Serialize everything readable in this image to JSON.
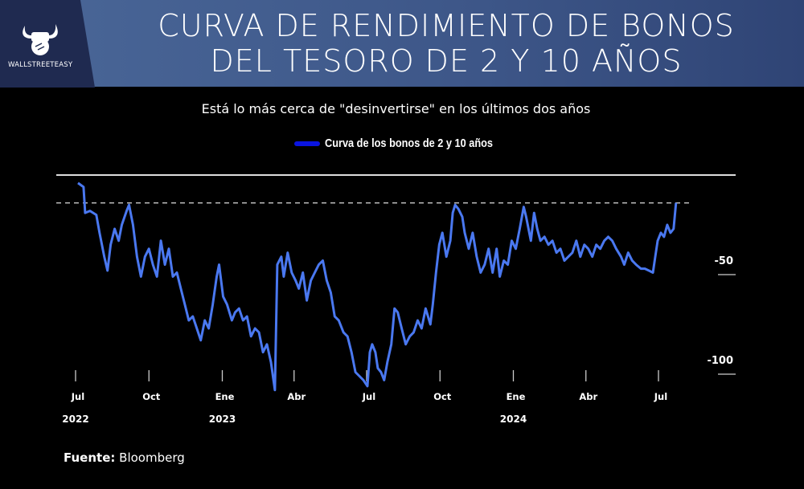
{
  "header": {
    "title_line1": "CURVA DE RENDIMIENTO DE BONOS",
    "title_line2": "DEL TESORO DE 2 Y 10 AÑOS",
    "logo_text": "WALLSTREETEASY"
  },
  "source": {
    "label": "Fuente:",
    "value": "Bloomberg"
  },
  "chart_data": {
    "type": "line",
    "subtitle": "Está lo más cerca de \"desinvertirse\" en los últimos dos años",
    "legend": "top",
    "series": [
      {
        "name": "Curva de los bonos de 2 y 10 años",
        "color": "#4a78f0",
        "legend_color": "#0a14e0",
        "points": [
          [
            "2022-07-04",
            -4
          ],
          [
            "2022-07-11",
            -6
          ],
          [
            "2022-07-13",
            -19
          ],
          [
            "2022-07-19",
            -18
          ],
          [
            "2022-07-27",
            -20
          ],
          [
            "2022-07-31",
            -29
          ],
          [
            "2022-08-06",
            -41
          ],
          [
            "2022-08-10",
            -48
          ],
          [
            "2022-08-14",
            -35
          ],
          [
            "2022-08-19",
            -27
          ],
          [
            "2022-08-24",
            -33
          ],
          [
            "2022-08-28",
            -25
          ],
          [
            "2022-09-03",
            -18
          ],
          [
            "2022-09-06",
            -15
          ],
          [
            "2022-09-11",
            -25
          ],
          [
            "2022-09-16",
            -41
          ],
          [
            "2022-09-21",
            -51
          ],
          [
            "2022-09-26",
            -41
          ],
          [
            "2022-10-01",
            -37
          ],
          [
            "2022-10-06",
            -45
          ],
          [
            "2022-10-11",
            -51
          ],
          [
            "2022-10-16",
            -33
          ],
          [
            "2022-10-21",
            -45
          ],
          [
            "2022-10-26",
            -37
          ],
          [
            "2022-10-31",
            -51
          ],
          [
            "2022-11-05",
            -49
          ],
          [
            "2022-11-10",
            -57
          ],
          [
            "2022-11-15",
            -65
          ],
          [
            "2022-11-20",
            -73
          ],
          [
            "2022-11-25",
            -71
          ],
          [
            "2022-11-30",
            -77
          ],
          [
            "2022-12-05",
            -83
          ],
          [
            "2022-12-10",
            -73
          ],
          [
            "2022-12-15",
            -77
          ],
          [
            "2022-12-20",
            -65
          ],
          [
            "2022-12-25",
            -51
          ],
          [
            "2022-12-28",
            -45
          ],
          [
            "2023-01-02",
            -61
          ],
          [
            "2023-01-07",
            -65
          ],
          [
            "2023-01-13",
            -73
          ],
          [
            "2023-01-17",
            -69
          ],
          [
            "2023-01-22",
            -67
          ],
          [
            "2023-01-27",
            -73
          ],
          [
            "2023-02-01",
            -71
          ],
          [
            "2023-02-06",
            -81
          ],
          [
            "2023-02-11",
            -77
          ],
          [
            "2023-02-16",
            -79
          ],
          [
            "2023-02-21",
            -89
          ],
          [
            "2023-02-26",
            -85
          ],
          [
            "2023-03-03",
            -94
          ],
          [
            "2023-03-08",
            -108
          ],
          [
            "2023-03-11",
            -45
          ],
          [
            "2023-03-16",
            -41
          ],
          [
            "2023-03-19",
            -51
          ],
          [
            "2023-03-24",
            -39
          ],
          [
            "2023-03-29",
            -49
          ],
          [
            "2023-04-03",
            -53
          ],
          [
            "2023-04-07",
            -57
          ],
          [
            "2023-04-12",
            -49
          ],
          [
            "2023-04-17",
            -63
          ],
          [
            "2023-04-22",
            -53
          ],
          [
            "2023-04-27",
            -49
          ],
          [
            "2023-05-02",
            -45
          ],
          [
            "2023-05-07",
            -43
          ],
          [
            "2023-05-12",
            -53
          ],
          [
            "2023-05-17",
            -59
          ],
          [
            "2023-05-22",
            -71
          ],
          [
            "2023-05-27",
            -73
          ],
          [
            "2023-06-02",
            -79
          ],
          [
            "2023-06-07",
            -81
          ],
          [
            "2023-06-12",
            -89
          ],
          [
            "2023-06-17",
            -99
          ],
          [
            "2023-06-22",
            -101
          ],
          [
            "2023-06-27",
            -103
          ],
          [
            "2023-07-02",
            -106
          ],
          [
            "2023-07-05",
            -89
          ],
          [
            "2023-07-08",
            -85
          ],
          [
            "2023-07-12",
            -89
          ],
          [
            "2023-07-15",
            -97
          ],
          [
            "2023-07-19",
            -99
          ],
          [
            "2023-07-23",
            -103
          ],
          [
            "2023-07-27",
            -94
          ],
          [
            "2023-08-01",
            -85
          ],
          [
            "2023-08-05",
            -67
          ],
          [
            "2023-08-09",
            -69
          ],
          [
            "2023-08-14",
            -77
          ],
          [
            "2023-08-19",
            -85
          ],
          [
            "2023-08-24",
            -81
          ],
          [
            "2023-08-29",
            -79
          ],
          [
            "2023-09-03",
            -73
          ],
          [
            "2023-09-08",
            -77
          ],
          [
            "2023-09-13",
            -67
          ],
          [
            "2023-09-19",
            -75
          ],
          [
            "2023-09-22",
            -65
          ],
          [
            "2023-09-26",
            -49
          ],
          [
            "2023-09-30",
            -35
          ],
          [
            "2023-10-04",
            -29
          ],
          [
            "2023-10-09",
            -41
          ],
          [
            "2023-10-14",
            -33
          ],
          [
            "2023-10-17",
            -19
          ],
          [
            "2023-10-20",
            -15
          ],
          [
            "2023-10-24",
            -17
          ],
          [
            "2023-10-29",
            -21
          ],
          [
            "2023-11-01",
            -29
          ],
          [
            "2023-11-06",
            -37
          ],
          [
            "2023-11-11",
            -29
          ],
          [
            "2023-11-16",
            -41
          ],
          [
            "2023-11-21",
            -49
          ],
          [
            "2023-11-26",
            -45
          ],
          [
            "2023-12-01",
            -37
          ],
          [
            "2023-12-06",
            -49
          ],
          [
            "2023-12-11",
            -37
          ],
          [
            "2023-12-15",
            -51
          ],
          [
            "2023-12-20",
            -43
          ],
          [
            "2023-12-25",
            -45
          ],
          [
            "2023-12-30",
            -33
          ],
          [
            "2024-01-04",
            -37
          ],
          [
            "2024-01-09",
            -27
          ],
          [
            "2024-01-14",
            -16
          ],
          [
            "2024-01-17",
            -21
          ],
          [
            "2024-01-23",
            -33
          ],
          [
            "2024-01-27",
            -19
          ],
          [
            "2024-01-31",
            -27
          ],
          [
            "2024-02-04",
            -33
          ],
          [
            "2024-02-09",
            -31
          ],
          [
            "2024-02-14",
            -35
          ],
          [
            "2024-02-19",
            -33
          ],
          [
            "2024-02-24",
            -39
          ],
          [
            "2024-02-29",
            -37
          ],
          [
            "2024-03-05",
            -43
          ],
          [
            "2024-03-10",
            -41
          ],
          [
            "2024-03-15",
            -39
          ],
          [
            "2024-03-20",
            -33
          ],
          [
            "2024-03-25",
            -41
          ],
          [
            "2024-03-30",
            -35
          ],
          [
            "2024-04-04",
            -37
          ],
          [
            "2024-04-09",
            -41
          ],
          [
            "2024-04-14",
            -35
          ],
          [
            "2024-04-19",
            -37
          ],
          [
            "2024-04-24",
            -33
          ],
          [
            "2024-04-29",
            -31
          ],
          [
            "2024-05-04",
            -33
          ],
          [
            "2024-05-09",
            -37
          ],
          [
            "2024-05-15",
            -41
          ],
          [
            "2024-05-19",
            -45
          ],
          [
            "2024-05-24",
            -39
          ],
          [
            "2024-05-29",
            -43
          ],
          [
            "2024-06-03",
            -45
          ],
          [
            "2024-06-09",
            -47
          ],
          [
            "2024-06-14",
            -47
          ],
          [
            "2024-06-19",
            -48
          ],
          [
            "2024-06-24",
            -49
          ],
          [
            "2024-06-27",
            -41
          ],
          [
            "2024-06-30",
            -33
          ],
          [
            "2024-07-04",
            -29
          ],
          [
            "2024-07-08",
            -31
          ],
          [
            "2024-07-12",
            -25
          ],
          [
            "2024-07-16",
            -29
          ],
          [
            "2024-07-20",
            -27
          ],
          [
            "2024-07-23",
            -14
          ]
        ]
      }
    ],
    "reference_lines": [
      {
        "value": 0,
        "style": "solid"
      },
      {
        "value": -14,
        "style": "dashed"
      }
    ],
    "x_ticks": [
      {
        "date": "2022-07-01",
        "label": "Jul",
        "year": "2022"
      },
      {
        "date": "2022-10-01",
        "label": "Oct"
      },
      {
        "date": "2023-01-01",
        "label": "Ene",
        "year": "2023"
      },
      {
        "date": "2023-04-01",
        "label": "Abr"
      },
      {
        "date": "2023-07-01",
        "label": "Jul"
      },
      {
        "date": "2023-10-01",
        "label": "Oct"
      },
      {
        "date": "2024-01-01",
        "label": "Ene",
        "year": "2024"
      },
      {
        "date": "2024-04-01",
        "label": "Abr"
      },
      {
        "date": "2024-07-01",
        "label": "Jul"
      }
    ],
    "y_ticks": [
      {
        "value": -50,
        "label": "-50"
      },
      {
        "value": -100,
        "label": "-100"
      }
    ],
    "ylim": [
      -108,
      0
    ],
    "grid": false
  }
}
